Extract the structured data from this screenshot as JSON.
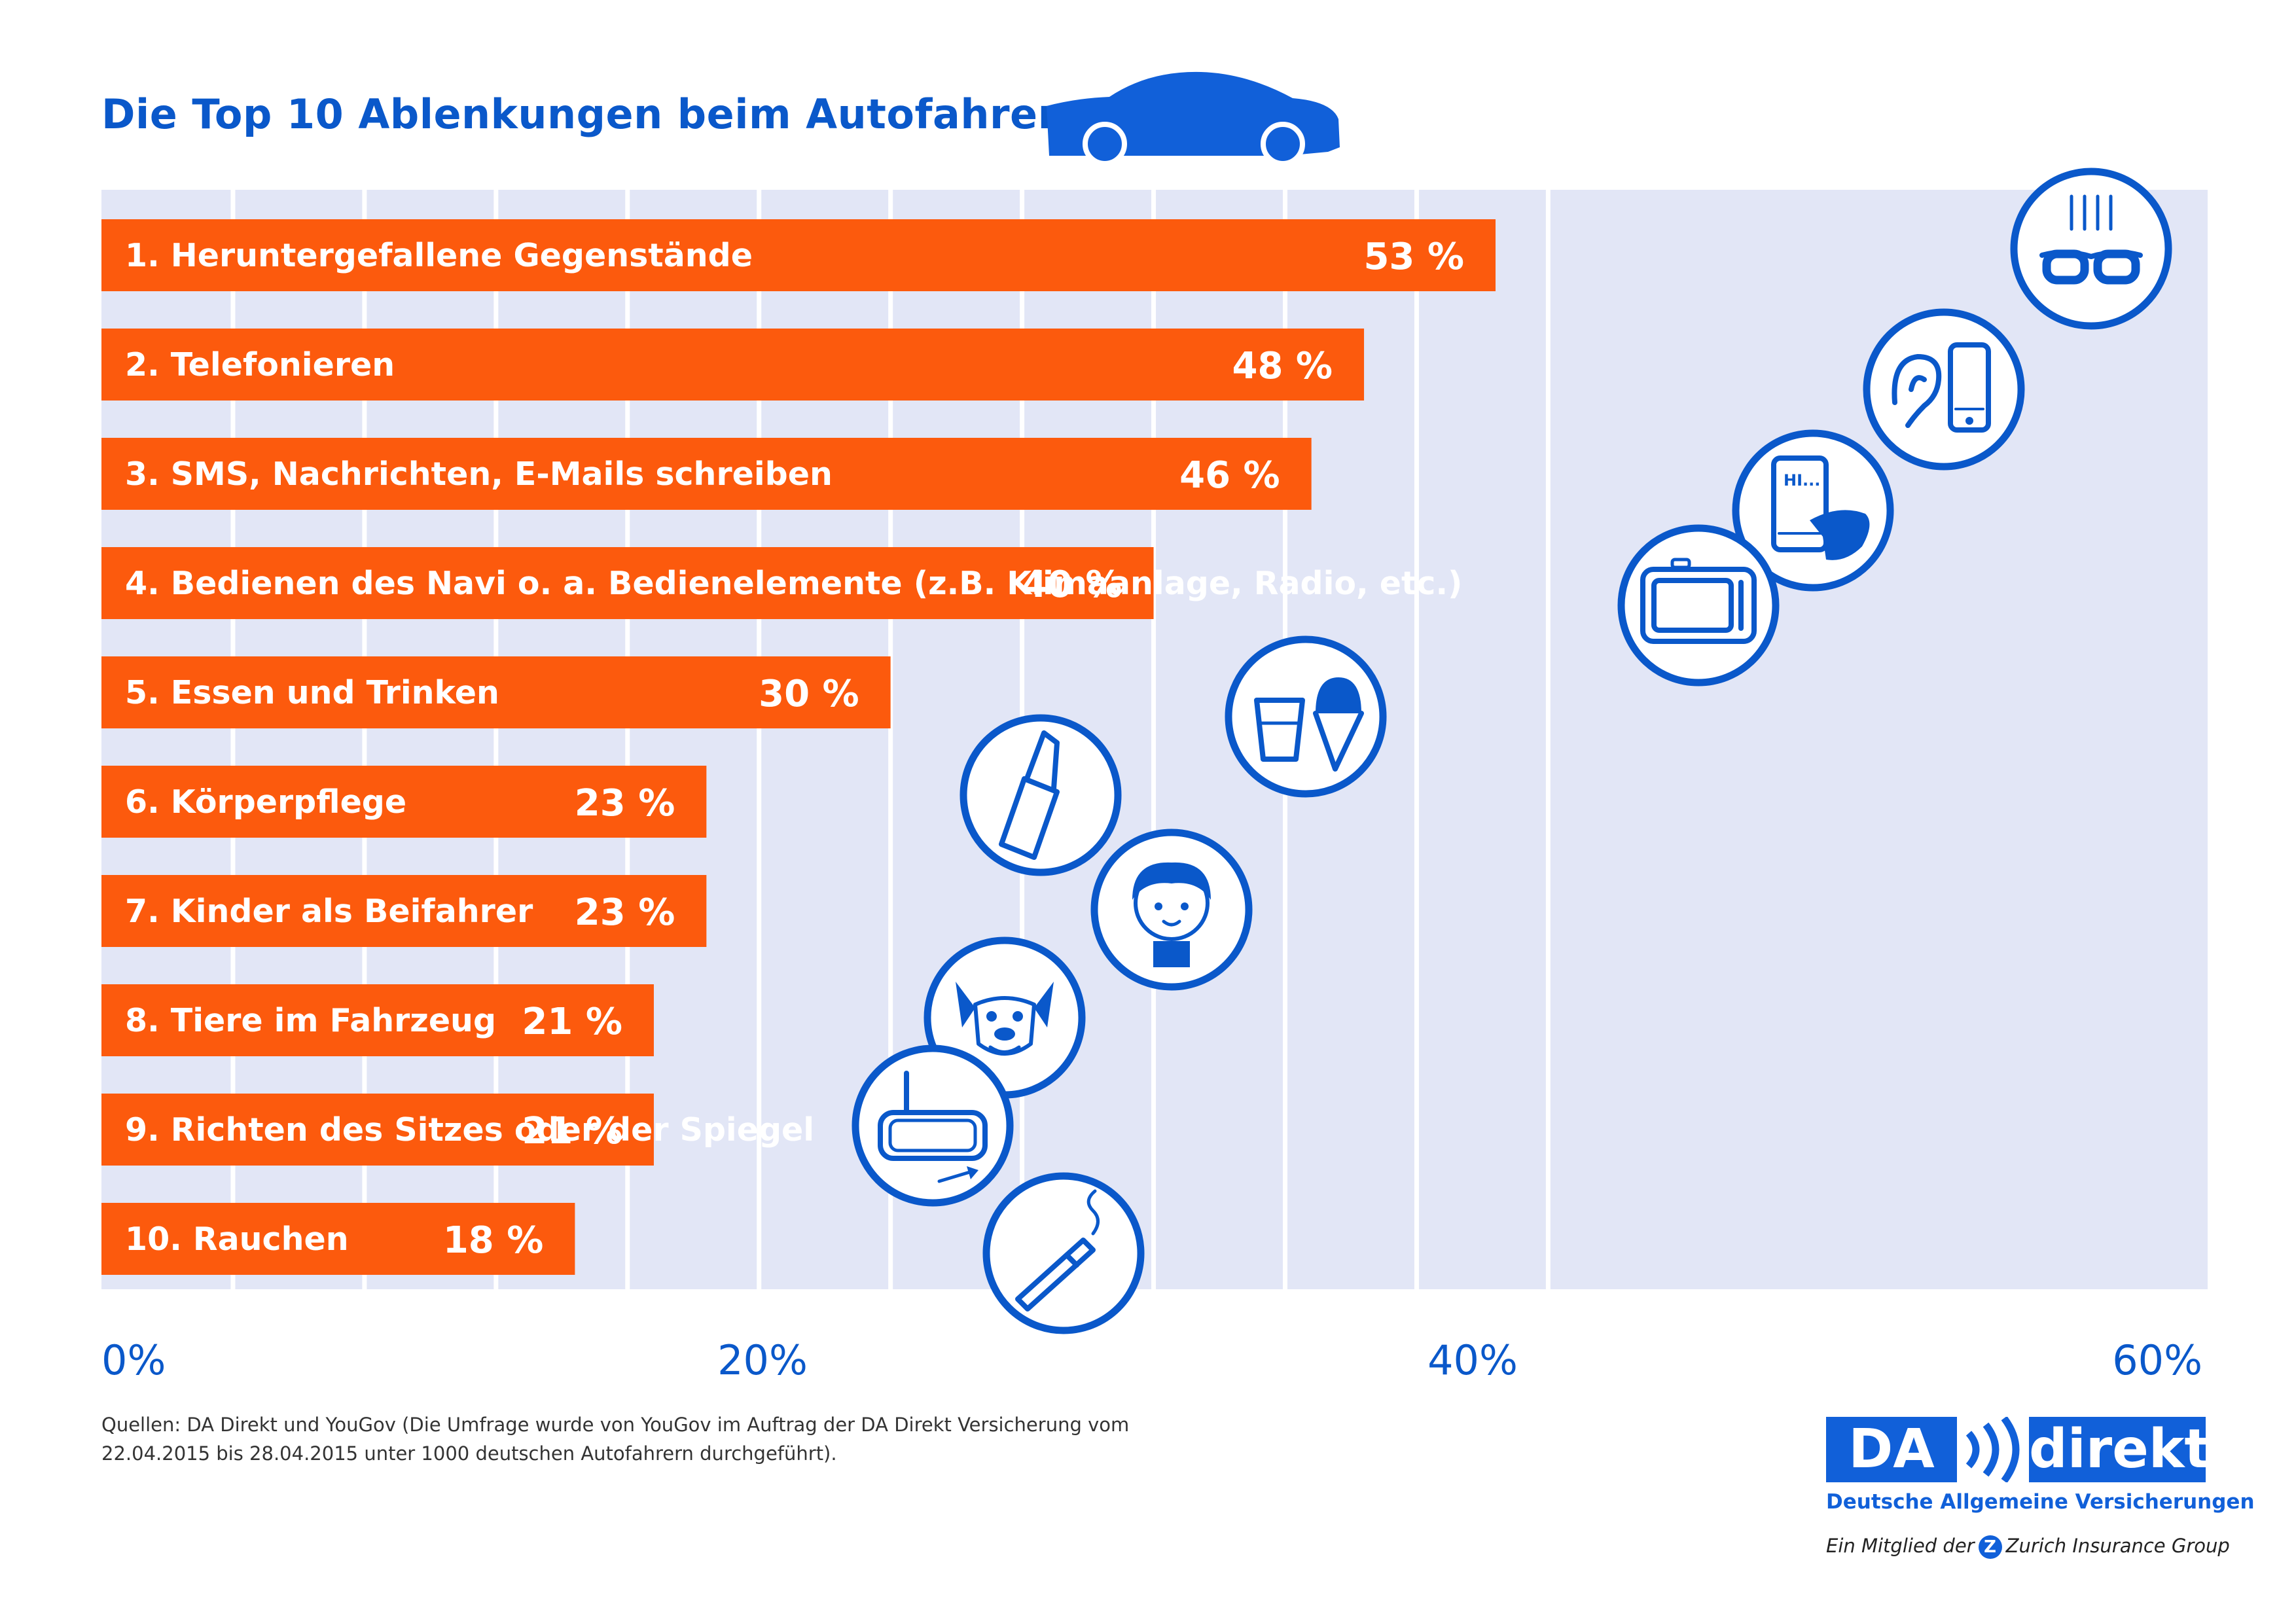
{
  "colors": {
    "bar": "#fc5a0d",
    "accent": "#0a58ca",
    "grid_bg": "#e2e6f6"
  },
  "header": {
    "title": "Die Top 10 Ablenkungen beim Autofahren"
  },
  "chart_data": {
    "type": "bar",
    "orientation": "horizontal",
    "title": "Die Top 10 Ablenkungen beim Autofahren",
    "categories": [
      "1. Heruntergefallene Gegenstände",
      "2. Telefonieren",
      "3. SMS, Nachrichten, E-Mails schreiben",
      "4. Bedienen des Navi o. a.  Bedienelemente (z.B. Klimaanlage, Radio, etc.)",
      "5. Essen und Trinken",
      "6. Körperpflege",
      "7. Kinder als Beifahrer",
      "8. Tiere im Fahrzeug",
      "9. Richten des Sitzes oder der Spiegel",
      "10. Rauchen"
    ],
    "values": [
      53,
      48,
      46,
      40,
      30,
      23,
      23,
      21,
      21,
      18
    ],
    "value_labels": [
      "53 %",
      "48 %",
      "46 %",
      "40 %",
      "30 %",
      "23 %",
      "23 %",
      "21 %",
      "21 %",
      "18 %"
    ],
    "icons": [
      "falling-glasses-icon",
      "ear-phone-icon",
      "texting-phone-icon",
      "navi-device-icon",
      "drink-and-ice-cream-icon",
      "lipstick-icon",
      "child-icon",
      "dog-icon",
      "mirror-icon",
      "cigarette-icon"
    ],
    "xlim": [
      0,
      60
    ],
    "x_tick_labels": [
      "0%",
      "20%",
      "40%",
      "60%"
    ],
    "grid": true
  },
  "footer": {
    "source": "Quellen: DA Direkt und YouGov (Die Umfrage wurde von YouGov im Auftrag der DA Direkt Versicherung vom 22.04.2015 bis 28.04.2015 unter 1000 deutschen Autofahrern durchgeführt)."
  },
  "logo": {
    "da": "DA",
    "direkt": "direkt",
    "subtitle": "Deutsche Allgemeine Versicherungen",
    "member_prefix": "Ein Mitglied der",
    "badge": "Z",
    "group": "Zurich Insurance Group"
  }
}
